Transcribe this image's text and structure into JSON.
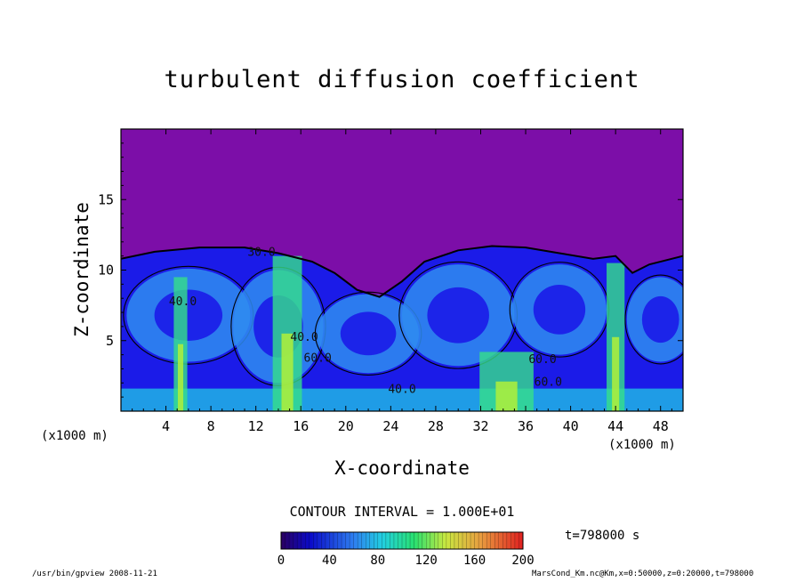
{
  "chart_data": {
    "type": "heatmap",
    "title": "turbulent diffusion coefficient",
    "xlabel": "X-coordinate",
    "ylabel": "Z-coordinate",
    "x_unit": "(x1000 m)",
    "xlim": [
      0,
      50
    ],
    "ylim": [
      0,
      20
    ],
    "xticks": [
      4,
      8,
      12,
      16,
      20,
      24,
      28,
      32,
      36,
      40,
      44,
      48
    ],
    "yticks": [
      5,
      10,
      15
    ],
    "contour_labels": [
      {
        "x": 12.5,
        "z": 11.0,
        "text": "30.0"
      },
      {
        "x": 5.5,
        "z": 7.5,
        "text": "40.0"
      },
      {
        "x": 16.3,
        "z": 5.0,
        "text": "40.0"
      },
      {
        "x": 17.5,
        "z": 3.5,
        "text": "60.0"
      },
      {
        "x": 25.0,
        "z": 1.3,
        "text": "40.0"
      },
      {
        "x": 37.5,
        "z": 3.4,
        "text": "60.0"
      },
      {
        "x": 38.0,
        "z": 1.8,
        "text": "60.0"
      }
    ],
    "colorbar": {
      "ticks": [
        0,
        40,
        80,
        120,
        160,
        200
      ],
      "range": [
        0,
        200
      ]
    },
    "contour_interval": "CONTOUR INTERVAL = 1.000E+01",
    "time": "t=798000 s",
    "colors": {
      "background_high": "#7c0ea8",
      "low": "#1b1be8",
      "mid_low": "#2f8cf0",
      "mid": "#22c8e6",
      "high": "#36e08a",
      "peak": "#b0f03a"
    }
  },
  "footer": {
    "left": "/usr/bin/gpview   2008-11-21",
    "right": "MarsCond_Km.nc@Km,x=0:50000,z=0:20000,t=798000"
  }
}
